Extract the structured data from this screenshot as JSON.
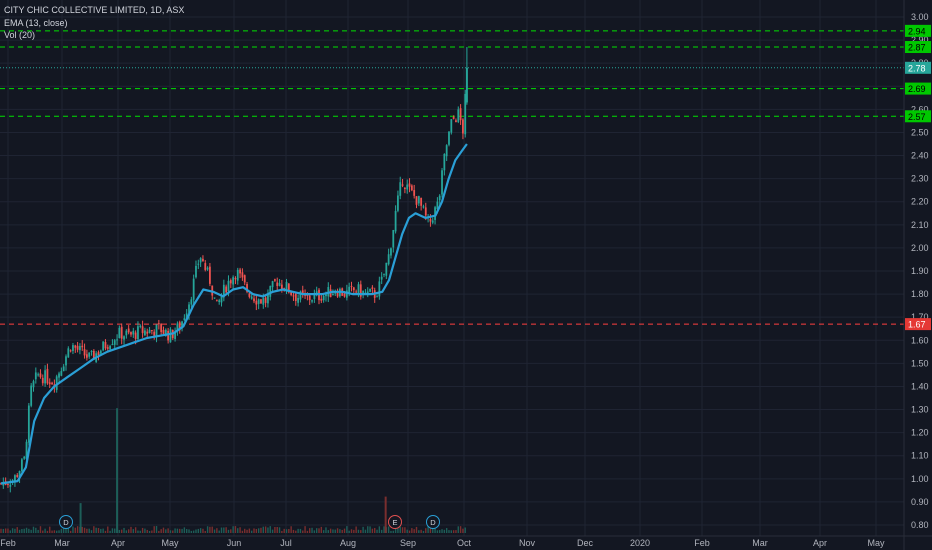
{
  "legend": {
    "symbol_line": "CITY CHIC COLLECTIVE LIMITED, 1D, ASX",
    "ema_line": "EMA (13, close)",
    "vol_line": "Vol (20)"
  },
  "colors": {
    "background": "#131722",
    "grid": "#1f2433",
    "up": "#26a69a",
    "down": "#ef5350",
    "ema": "#2a9fd6",
    "green_level": "#00e000",
    "red_level": "#ff4040",
    "text": "#b2b5be"
  },
  "chart_data": {
    "type": "candlestick",
    "x_tick_labels": [
      "Feb",
      "Mar",
      "Apr",
      "May",
      "Jun",
      "Jul",
      "Aug",
      "Sep",
      "Oct",
      "Nov",
      "Dec",
      "2020",
      "Feb",
      "Mar",
      "Apr",
      "May"
    ],
    "y_tick_labels": [
      "3.00",
      "2.90",
      "2.80",
      "2.70",
      "2.60",
      "2.50",
      "2.40",
      "2.30",
      "2.20",
      "2.10",
      "2.00",
      "1.90",
      "1.80",
      "1.70",
      "1.60",
      "1.50",
      "1.40",
      "1.30",
      "1.20",
      "1.10",
      "1.00",
      "0.90",
      "0.80"
    ],
    "y_range": [
      0.78,
      3.02
    ],
    "horizontal_levels": [
      {
        "label": "2.94",
        "value": 2.94,
        "color": "green"
      },
      {
        "label": "2.87",
        "value": 2.87,
        "color": "green"
      },
      {
        "label": "2.69",
        "value": 2.69,
        "color": "green"
      },
      {
        "label": "2.57",
        "value": 2.57,
        "color": "green"
      },
      {
        "label": "1.67",
        "value": 1.67,
        "color": "red"
      }
    ],
    "last_price": {
      "label": "2.78",
      "value": 2.78
    },
    "events": [
      {
        "label": "D",
        "date": "Feb 18"
      },
      {
        "label": "E",
        "date": "Aug 28"
      },
      {
        "label": "D",
        "date": "Sep 10"
      }
    ],
    "price_path": [
      [
        0,
        0.98
      ],
      [
        8,
        1.0
      ],
      [
        14,
        1.08
      ],
      [
        18,
        1.38
      ],
      [
        22,
        1.45
      ],
      [
        27,
        1.44
      ],
      [
        32,
        1.42
      ],
      [
        36,
        1.48
      ],
      [
        42,
        1.58
      ],
      [
        48,
        1.55
      ],
      [
        54,
        1.52
      ],
      [
        60,
        1.56
      ],
      [
        66,
        1.6
      ],
      [
        72,
        1.63
      ],
      [
        78,
        1.62
      ],
      [
        84,
        1.64
      ],
      [
        90,
        1.64
      ],
      [
        96,
        1.65
      ],
      [
        102,
        1.62
      ],
      [
        108,
        1.66
      ],
      [
        114,
        1.78
      ],
      [
        120,
        1.97
      ],
      [
        126,
        1.86
      ],
      [
        130,
        1.74
      ],
      [
        136,
        1.84
      ],
      [
        142,
        1.9
      ],
      [
        148,
        1.82
      ],
      [
        154,
        1.78
      ],
      [
        160,
        1.77
      ],
      [
        166,
        1.86
      ],
      [
        172,
        1.83
      ],
      [
        178,
        1.79
      ],
      [
        184,
        1.78
      ],
      [
        190,
        1.79
      ],
      [
        196,
        1.8
      ],
      [
        202,
        1.82
      ],
      [
        208,
        1.8
      ],
      [
        214,
        1.82
      ],
      [
        220,
        1.8
      ],
      [
        226,
        1.8
      ],
      [
        230,
        1.86
      ],
      [
        234,
        1.97
      ],
      [
        238,
        2.15
      ],
      [
        242,
        2.3
      ],
      [
        246,
        2.25
      ],
      [
        252,
        2.2
      ],
      [
        258,
        2.1
      ],
      [
        264,
        2.2
      ],
      [
        268,
        2.42
      ],
      [
        272,
        2.55
      ],
      [
        276,
        2.58
      ],
      [
        279,
        2.5
      ],
      [
        281,
        2.78
      ]
    ],
    "ema_path": [
      [
        0,
        0.98
      ],
      [
        10,
        0.99
      ],
      [
        15,
        1.05
      ],
      [
        20,
        1.25
      ],
      [
        26,
        1.35
      ],
      [
        32,
        1.4
      ],
      [
        40,
        1.44
      ],
      [
        48,
        1.48
      ],
      [
        56,
        1.52
      ],
      [
        64,
        1.55
      ],
      [
        72,
        1.57
      ],
      [
        80,
        1.59
      ],
      [
        88,
        1.61
      ],
      [
        96,
        1.62
      ],
      [
        104,
        1.63
      ],
      [
        110,
        1.66
      ],
      [
        116,
        1.75
      ],
      [
        122,
        1.82
      ],
      [
        128,
        1.81
      ],
      [
        134,
        1.79
      ],
      [
        140,
        1.82
      ],
      [
        146,
        1.83
      ],
      [
        152,
        1.8
      ],
      [
        158,
        1.79
      ],
      [
        164,
        1.81
      ],
      [
        170,
        1.82
      ],
      [
        176,
        1.81
      ],
      [
        182,
        1.8
      ],
      [
        188,
        1.8
      ],
      [
        194,
        1.8
      ],
      [
        200,
        1.81
      ],
      [
        206,
        1.81
      ],
      [
        212,
        1.8
      ],
      [
        218,
        1.8
      ],
      [
        224,
        1.8
      ],
      [
        230,
        1.81
      ],
      [
        234,
        1.86
      ],
      [
        238,
        1.96
      ],
      [
        242,
        2.06
      ],
      [
        246,
        2.13
      ],
      [
        250,
        2.15
      ],
      [
        256,
        2.13
      ],
      [
        262,
        2.14
      ],
      [
        266,
        2.2
      ],
      [
        270,
        2.3
      ],
      [
        274,
        2.38
      ],
      [
        278,
        2.42
      ],
      [
        281,
        2.45
      ]
    ],
    "volume_spikes": [
      {
        "day": 48,
        "value": 0.23
      },
      {
        "day": 70,
        "value": 0.96
      },
      {
        "day": 232,
        "value": 0.28
      }
    ]
  }
}
